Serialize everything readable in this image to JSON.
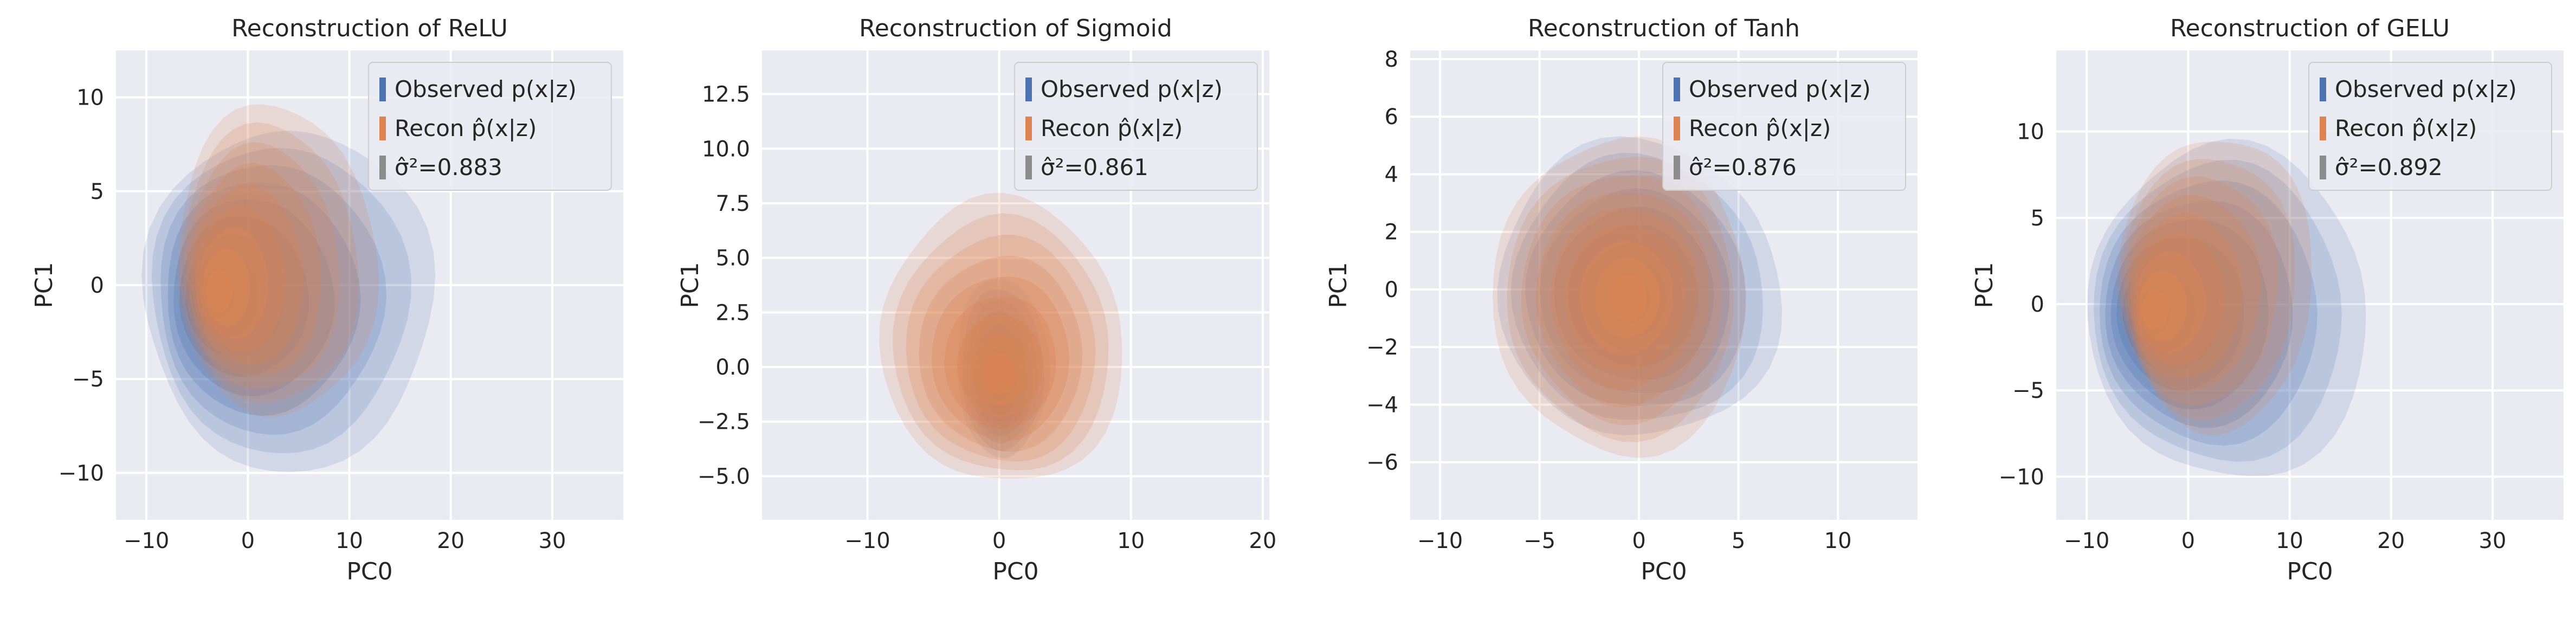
{
  "figure": {
    "colors": {
      "observed": "#4c72b0",
      "recon": "#dd8452",
      "gray": "#8c8c8c",
      "background": "#eaeaf2"
    }
  },
  "chart_data": [
    {
      "type": "kde",
      "title": "Reconstruction of ReLU",
      "xlabel": "PC0",
      "ylabel": "PC1",
      "xlim": [
        -13,
        37
      ],
      "ylim": [
        -12.5,
        12.5
      ],
      "xticks": [
        -10,
        0,
        10,
        20,
        30
      ],
      "yticks": [
        -10,
        -5,
        0,
        5,
        10
      ],
      "grid": true,
      "legend_position": "top-right",
      "legend": [
        "Observed p(x|z)",
        "Recon p̂(x|z)",
        "σ̂²=0.883"
      ],
      "series": [
        {
          "name": "Observed p(x|z)",
          "mode": [
            -4,
            -0.5
          ],
          "extent_x": [
            -10,
            18
          ],
          "extent_y": [
            -10,
            8.5
          ]
        },
        {
          "name": "Recon p̂(x|z)",
          "mode": [
            -3.5,
            -0.5
          ],
          "extent_x": [
            -7,
            12.5
          ],
          "extent_y": [
            -7,
            9.5
          ]
        }
      ],
      "sigma2": 0.883
    },
    {
      "type": "kde",
      "title": "Reconstruction of Sigmoid",
      "xlabel": "PC0",
      "ylabel": "PC1",
      "xlim": [
        -18,
        20.5
      ],
      "ylim": [
        -7,
        14.5
      ],
      "xticks": [
        -10,
        0,
        10,
        20
      ],
      "yticks": [
        -5.0,
        -2.5,
        0.0,
        2.5,
        5.0,
        7.5,
        10.0,
        12.5
      ],
      "grid": true,
      "legend_position": "top-right",
      "legend": [
        "Observed p(x|z)",
        "Recon p̂(x|z)",
        "σ̂²=0.861"
      ],
      "series": [
        {
          "name": "Observed p(x|z)",
          "mode": [
            0,
            -1
          ],
          "extent_x": [
            -3,
            3.5
          ],
          "extent_y": [
            -4,
            4
          ]
        },
        {
          "name": "Recon p̂(x|z)",
          "mode": [
            0,
            -0.5
          ],
          "extent_x": [
            -9,
            9.5
          ],
          "extent_y": [
            -5.2,
            7.5
          ]
        }
      ],
      "sigma2": 0.861
    },
    {
      "type": "kde",
      "title": "Reconstruction of Tanh",
      "xlabel": "PC0",
      "ylabel": "PC1",
      "xlim": [
        -11.5,
        14
      ],
      "ylim": [
        -8,
        8.3
      ],
      "xticks": [
        -10,
        -5,
        0,
        5,
        10
      ],
      "yticks": [
        -6,
        -4,
        -2,
        0,
        2,
        4,
        6,
        8
      ],
      "grid": true,
      "legend_position": "top-right",
      "legend": [
        "Observed p(x|z)",
        "Recon p̂(x|z)",
        "σ̂²=0.876"
      ],
      "series": [
        {
          "name": "Observed p(x|z)",
          "mode": [
            -0.5,
            -0.4
          ],
          "extent_x": [
            -7,
            7
          ],
          "extent_y": [
            -5,
            5
          ]
        },
        {
          "name": "Recon p̂(x|z)",
          "mode": [
            -0.5,
            -0.3
          ],
          "extent_x": [
            -7.3,
            5.5
          ],
          "extent_y": [
            -5.5,
            5
          ]
        }
      ],
      "sigma2": 0.876
    },
    {
      "type": "kde",
      "title": "Reconstruction of GELU",
      "xlabel": "PC0",
      "ylabel": "PC1",
      "xlim": [
        -13,
        37
      ],
      "ylim": [
        -12.5,
        14.7
      ],
      "xticks": [
        -10,
        0,
        10,
        20,
        30
      ],
      "yticks": [
        -10,
        -5,
        0,
        5,
        10
      ],
      "grid": true,
      "legend_position": "top-right",
      "legend": [
        "Observed p(x|z)",
        "Recon p̂(x|z)",
        "σ̂²=0.892"
      ],
      "series": [
        {
          "name": "Observed p(x|z)",
          "mode": [
            -4.5,
            -0.5
          ],
          "extent_x": [
            -10,
            18
          ],
          "extent_y": [
            -10,
            9
          ]
        },
        {
          "name": "Recon p̂(x|z)",
          "mode": [
            -4,
            -0.5
          ],
          "extent_x": [
            -7,
            12.5
          ],
          "extent_y": [
            -7,
            9.5
          ]
        }
      ],
      "sigma2": 0.892
    }
  ]
}
